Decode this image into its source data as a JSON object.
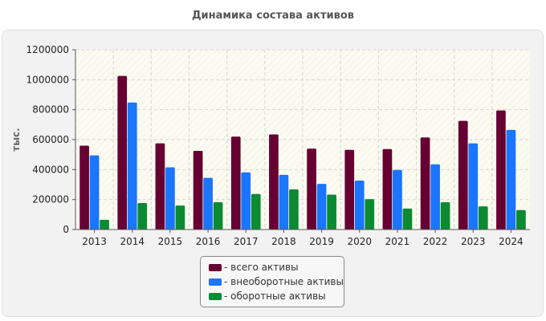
{
  "chart_data": {
    "type": "bar",
    "title": "Динамика состава активов",
    "xlabel": "",
    "ylabel": "тыс.",
    "ylim": [
      0,
      1200000
    ],
    "yticks": [
      "0",
      "200000",
      "400000",
      "600000",
      "800000",
      "1000000",
      "1200000"
    ],
    "categories": [
      "2013",
      "2014",
      "2015",
      "2016",
      "2017",
      "2018",
      "2019",
      "2020",
      "2021",
      "2022",
      "2023",
      "2024"
    ],
    "series": [
      {
        "name": "- всего активы",
        "color": "#660033",
        "values": [
          560000,
          1025000,
          575000,
          525000,
          620000,
          635000,
          540000,
          532000,
          537000,
          615000,
          725000,
          795000
        ]
      },
      {
        "name": "- внеоборотные активы",
        "color": "#1a75ff",
        "values": [
          495000,
          848000,
          415000,
          345000,
          382000,
          365000,
          305000,
          327000,
          398000,
          435000,
          575000,
          665000
        ]
      },
      {
        "name": "- оборотные активы",
        "color": "#0b8a32",
        "values": [
          65000,
          177000,
          160000,
          182000,
          237000,
          268000,
          233000,
          203000,
          140000,
          182000,
          155000,
          130000
        ]
      }
    ],
    "grid": true,
    "legend_position": "bottom-center"
  }
}
